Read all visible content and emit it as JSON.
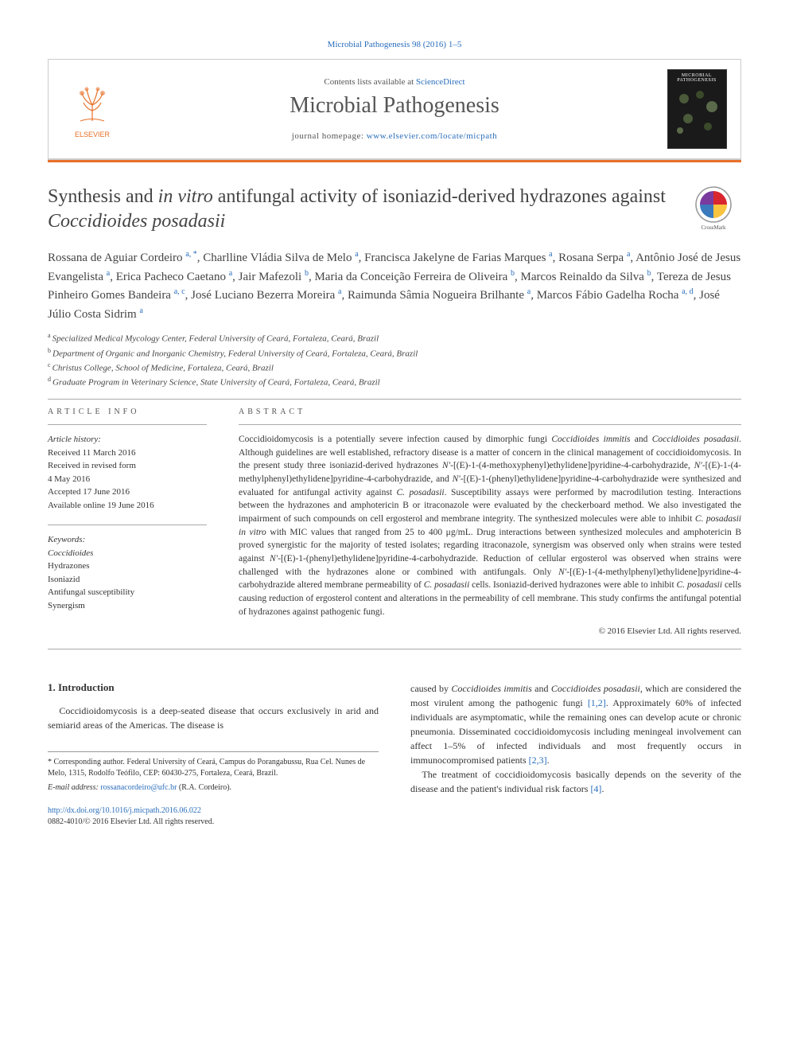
{
  "citation": "Microbial Pathogenesis 98 (2016) 1–5",
  "header": {
    "contents_prefix": "Contents lists available at ",
    "contents_link": "ScienceDirect",
    "journal": "Microbial Pathogenesis",
    "homepage_prefix": "journal homepage: ",
    "homepage_url": "www.elsevier.com/locate/micpath",
    "elsevier_label": "ELSEVIER",
    "cover_label": "MICROBIAL PATHOGENESIS"
  },
  "crossmark_label": "CrossMark",
  "title": {
    "part1": "Synthesis and ",
    "ital1": "in vitro",
    "part2": " antifungal activity of isoniazid-derived hydrazones against ",
    "ital2": "Coccidioides posadasii"
  },
  "authors": [
    {
      "name": "Rossana de Aguiar Cordeiro",
      "aff": "a, *"
    },
    {
      "name": "Charlline Vládia Silva de Melo",
      "aff": "a"
    },
    {
      "name": "Francisca Jakelyne de Farias Marques",
      "aff": "a"
    },
    {
      "name": "Rosana Serpa",
      "aff": "a"
    },
    {
      "name": "Antônio José de Jesus Evangelista",
      "aff": "a"
    },
    {
      "name": "Erica Pacheco Caetano",
      "aff": "a"
    },
    {
      "name": "Jair Mafezoli",
      "aff": "b"
    },
    {
      "name": "Maria da Conceição Ferreira de Oliveira",
      "aff": "b"
    },
    {
      "name": "Marcos Reinaldo da Silva",
      "aff": "b"
    },
    {
      "name": "Tereza de Jesus Pinheiro Gomes Bandeira",
      "aff": "a, c"
    },
    {
      "name": "José Luciano Bezerra Moreira",
      "aff": "a"
    },
    {
      "name": "Raimunda Sâmia Nogueira Brilhante",
      "aff": "a"
    },
    {
      "name": "Marcos Fábio Gadelha Rocha",
      "aff": "a, d"
    },
    {
      "name": "José Júlio Costa Sidrim",
      "aff": "a"
    }
  ],
  "affiliations": [
    {
      "sup": "a",
      "text": "Specialized Medical Mycology Center, Federal University of Ceará, Fortaleza, Ceará, Brazil"
    },
    {
      "sup": "b",
      "text": "Department of Organic and Inorganic Chemistry, Federal University of Ceará, Fortaleza, Ceará, Brazil"
    },
    {
      "sup": "c",
      "text": "Christus College, School of Medicine, Fortaleza, Ceará, Brazil"
    },
    {
      "sup": "d",
      "text": "Graduate Program in Veterinary Science, State University of Ceará, Fortaleza, Ceará, Brazil"
    }
  ],
  "info": {
    "section_label": "ARTICLE INFO",
    "history_label": "Article history:",
    "history": [
      "Received 11 March 2016",
      "Received in revised form",
      "4 May 2016",
      "Accepted 17 June 2016",
      "Available online 19 June 2016"
    ],
    "keywords_label": "Keywords:",
    "keywords": [
      "Coccidioides",
      "Hydrazones",
      "Isoniazid",
      "Antifungal susceptibility",
      "Synergism"
    ]
  },
  "abstract": {
    "section_label": "ABSTRACT",
    "text_parts": [
      {
        "t": "Coccidioidomycosis is a potentially severe infection caused by dimorphic fungi "
      },
      {
        "t": "Coccidioides immitis",
        "i": true
      },
      {
        "t": " and "
      },
      {
        "t": "Coccidioides posadasii",
        "i": true
      },
      {
        "t": ". Although guidelines are well established, refractory disease is a matter of concern in the clinical management of coccidioidomycosis. In the present study three isoniazid-derived hydrazones "
      },
      {
        "t": "N′",
        "i": true
      },
      {
        "t": "-[(E)-1-(4-methoxyphenyl)ethylidene]pyridine-4-carbohydrazide, "
      },
      {
        "t": "N′",
        "i": true
      },
      {
        "t": "-[(E)-1-(4-methylphenyl)ethylidene]pyridine-4-carbohydrazide, and "
      },
      {
        "t": "N′",
        "i": true
      },
      {
        "t": "-[(E)-1-(phenyl)ethylidene]pyridine-4-carbohydrazide were synthesized and evaluated for antifungal activity against "
      },
      {
        "t": "C. posadasii",
        "i": true
      },
      {
        "t": ". Susceptibility assays were performed by macrodilution testing. Interactions between the hydrazones and amphotericin B or itraconazole were evaluated by the checkerboard method. We also investigated the impairment of such compounds on cell ergosterol and membrane integrity. The synthesized molecules were able to inhibit "
      },
      {
        "t": "C. posadasii in vitro",
        "i": true
      },
      {
        "t": " with MIC values that ranged from 25 to 400 μg/mL. Drug interactions between synthesized molecules and amphotericin B proved synergistic for the majority of tested isolates; regarding itraconazole, synergism was observed only when strains were tested against "
      },
      {
        "t": "N′",
        "i": true
      },
      {
        "t": "-[(E)-1-(phenyl)ethylidene]pyridine-4-carbohydrazide. Reduction of cellular ergosterol was observed when strains were challenged with the hydrazones alone or combined with antifungals. Only "
      },
      {
        "t": "N′",
        "i": true
      },
      {
        "t": "-[(E)-1-(4-methylphenyl)ethylidene]pyridine-4-carbohydrazide altered membrane permeability of "
      },
      {
        "t": "C. posadasii",
        "i": true
      },
      {
        "t": " cells. Isoniazid-derived hydrazones were able to inhibit "
      },
      {
        "t": "C. posadasii",
        "i": true
      },
      {
        "t": " cells causing reduction of ergosterol content and alterations in the permeability of cell membrane. This study confirms the antifungal potential of hydrazones against pathogenic fungi."
      }
    ],
    "copyright": "© 2016 Elsevier Ltd. All rights reserved."
  },
  "intro": {
    "heading": "1. Introduction",
    "left_p1": "Coccidioidomycosis is a deep-seated disease that occurs exclusively in arid and semiarid areas of the Americas. The disease is",
    "right_p1_parts": [
      {
        "t": "caused by "
      },
      {
        "t": "Coccidioides immitis",
        "i": true
      },
      {
        "t": " and "
      },
      {
        "t": "Coccidioides posadasii",
        "i": true
      },
      {
        "t": ", which are considered the most virulent among the pathogenic fungi "
      },
      {
        "t": "[1,2]",
        "link": true
      },
      {
        "t": ". Approximately 60% of infected individuals are asymptomatic, while the remaining ones can develop acute or chronic pneumonia. Disseminated coccidioidomycosis including meningeal involvement can affect 1–5% of infected individuals and most frequently occurs in immunocompromised patients "
      },
      {
        "t": "[2,3]",
        "link": true
      },
      {
        "t": "."
      }
    ],
    "right_p2_parts": [
      {
        "t": "The treatment of coccidioidomycosis basically depends on the severity of the disease and the patient's individual risk factors "
      },
      {
        "t": "[4]",
        "link": true
      },
      {
        "t": "."
      }
    ]
  },
  "footer": {
    "corr_label": "* Corresponding author. Federal University of Ceará, Campus do Porangabussu, Rua Cel. Nunes de Melo, 1315, Rodolfo Teófilo, CEP: 60430-275, Fortaleza, Ceará, Brazil.",
    "email_label": "E-mail address:",
    "email": "rossanacordeiro@ufc.br",
    "email_person": "(R.A. Cordeiro).",
    "doi": "http://dx.doi.org/10.1016/j.micpath.2016.06.022",
    "issn_line": "0882-4010/© 2016 Elsevier Ltd. All rights reserved."
  },
  "colors": {
    "link": "#2a6ebb",
    "accent_bar": "#e8702a",
    "text": "#333333",
    "rule": "#aaaaaa"
  }
}
